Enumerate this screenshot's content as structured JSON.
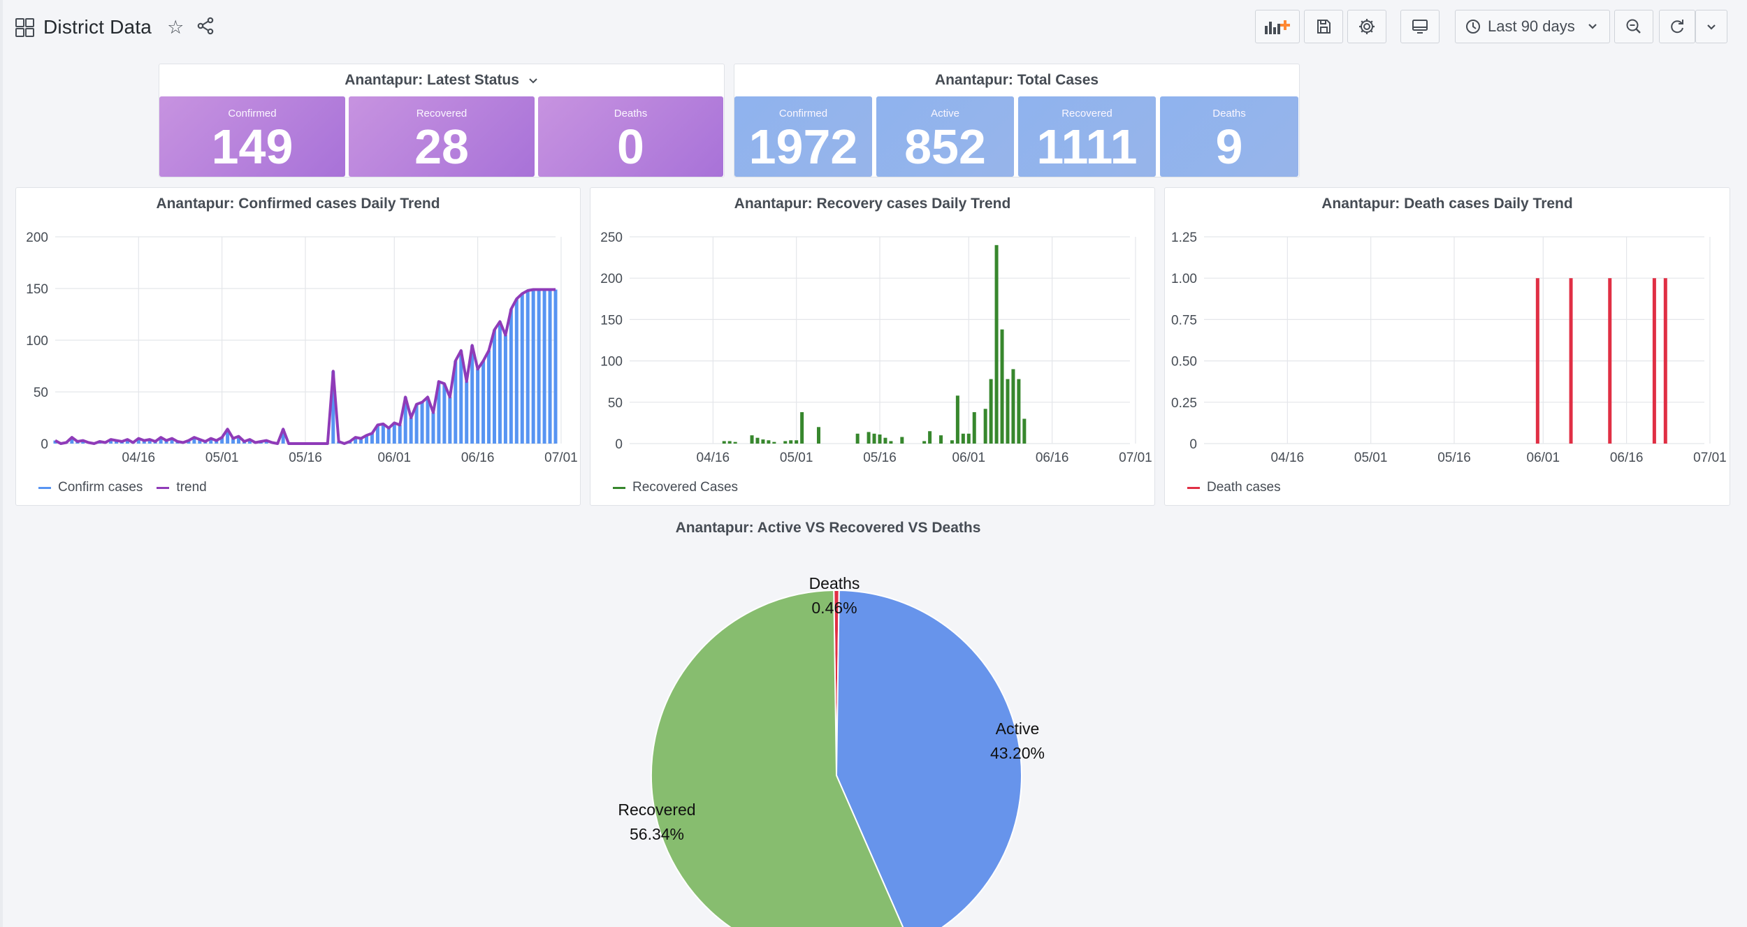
{
  "header": {
    "title": "District Data",
    "time_range": "Last 90 days"
  },
  "latest_status": {
    "title": "Anantapur: Latest Status",
    "stats": [
      {
        "label": "Confirmed",
        "value": "149"
      },
      {
        "label": "Recovered",
        "value": "28"
      },
      {
        "label": "Deaths",
        "value": "0"
      }
    ]
  },
  "total_cases": {
    "title": "Anantapur: Total Cases",
    "stats": [
      {
        "label": "Confirmed",
        "value": "1972"
      },
      {
        "label": "Active",
        "value": "852"
      },
      {
        "label": "Recovered",
        "value": "1111"
      },
      {
        "label": "Deaths",
        "value": "9"
      }
    ]
  },
  "colors": {
    "confirm_bar": "#5794f2",
    "trend": "#8f3bb8",
    "recovered": "#37872d",
    "deaths": "#e02f44",
    "pie_active": "#6794eb",
    "pie_recovered": "#87bd6f",
    "pie_deaths": "#e02f44"
  },
  "chart_data": [
    {
      "type": "bar",
      "title": "Anantapur: Confirmed cases Daily Trend",
      "x_tick_labels": [
        "04/16",
        "05/01",
        "05/16",
        "06/01",
        "06/16",
        "07/01"
      ],
      "y_tick_labels": [
        "0",
        "50",
        "100",
        "150",
        "200"
      ],
      "ylim": [
        0,
        200
      ],
      "xlim_days": [
        0,
        90
      ],
      "legend": [
        "Confirm cases",
        "trend"
      ],
      "series": [
        {
          "name": "Confirm cases",
          "render": "bars",
          "values": [
            3,
            0,
            1,
            6,
            2,
            3,
            1,
            0,
            2,
            1,
            4,
            3,
            2,
            4,
            1,
            5,
            3,
            4,
            2,
            6,
            3,
            5,
            2,
            1,
            3,
            6,
            4,
            2,
            5,
            3,
            6,
            14,
            5,
            7,
            2,
            4,
            1,
            2,
            3,
            1,
            0,
            14,
            0,
            0,
            0,
            0,
            0,
            0,
            0,
            0,
            70,
            2,
            0,
            2,
            6,
            5,
            8,
            10,
            18,
            19,
            15,
            20,
            18,
            45,
            25,
            38,
            40,
            45,
            30,
            60,
            58,
            45,
            80,
            90,
            60,
            95,
            72,
            80,
            90,
            110,
            118,
            105,
            130,
            140,
            145,
            148,
            149,
            149,
            149,
            149,
            149
          ]
        },
        {
          "name": "trend",
          "render": "line",
          "values": [
            3,
            0,
            1,
            6,
            2,
            3,
            1,
            0,
            2,
            1,
            4,
            3,
            2,
            4,
            1,
            5,
            3,
            4,
            2,
            6,
            3,
            5,
            2,
            1,
            3,
            6,
            4,
            2,
            5,
            3,
            6,
            14,
            5,
            7,
            2,
            4,
            1,
            2,
            3,
            1,
            0,
            14,
            0,
            0,
            0,
            0,
            0,
            0,
            0,
            0,
            70,
            2,
            0,
            2,
            6,
            5,
            8,
            10,
            18,
            19,
            15,
            20,
            18,
            45,
            25,
            38,
            40,
            45,
            30,
            60,
            58,
            45,
            80,
            90,
            60,
            95,
            72,
            80,
            90,
            110,
            118,
            105,
            130,
            140,
            145,
            148,
            149,
            149,
            149,
            149,
            149
          ]
        }
      ]
    },
    {
      "type": "bar",
      "title": "Anantapur: Recovery cases Daily Trend",
      "x_tick_labels": [
        "04/16",
        "05/01",
        "05/16",
        "06/01",
        "06/16",
        "07/01"
      ],
      "y_tick_labels": [
        "0",
        "50",
        "100",
        "150",
        "200",
        "250"
      ],
      "ylim": [
        0,
        250
      ],
      "legend": [
        "Recovered Cases"
      ],
      "series": [
        {
          "name": "Recovered Cases",
          "render": "bars",
          "points": [
            [
              17,
              3
            ],
            [
              18,
              3
            ],
            [
              19,
              2
            ],
            [
              22,
              10
            ],
            [
              23,
              7
            ],
            [
              24,
              5
            ],
            [
              25,
              4
            ],
            [
              26,
              2
            ],
            [
              28,
              3
            ],
            [
              29,
              4
            ],
            [
              30,
              4
            ],
            [
              31,
              38
            ],
            [
              34,
              20
            ],
            [
              41,
              12
            ],
            [
              43,
              14
            ],
            [
              44,
              12
            ],
            [
              45,
              11
            ],
            [
              46,
              7
            ],
            [
              47,
              3
            ],
            [
              49,
              8
            ],
            [
              53,
              3
            ],
            [
              54,
              15
            ],
            [
              56,
              10
            ],
            [
              58,
              4
            ],
            [
              59,
              58
            ],
            [
              60,
              12
            ],
            [
              61,
              12
            ],
            [
              62,
              38
            ],
            [
              64,
              42
            ],
            [
              65,
              78
            ],
            [
              66,
              240
            ],
            [
              67,
              138
            ],
            [
              68,
              78
            ],
            [
              69,
              90
            ],
            [
              70,
              78
            ],
            [
              71,
              30
            ]
          ]
        }
      ]
    },
    {
      "type": "bar",
      "title": "Anantapur: Death cases Daily Trend",
      "x_tick_labels": [
        "04/16",
        "05/01",
        "05/16",
        "06/01",
        "06/16",
        "07/01"
      ],
      "y_tick_labels": [
        "0",
        "0.25",
        "0.50",
        "0.75",
        "1.00",
        "1.25"
      ],
      "ylim": [
        0,
        1.25
      ],
      "legend": [
        "Death cases"
      ],
      "series": [
        {
          "name": "Death cases",
          "render": "bars",
          "points": [
            [
              60,
              1
            ],
            [
              66,
              1
            ],
            [
              73,
              1
            ],
            [
              81,
              1
            ],
            [
              83,
              1
            ]
          ]
        }
      ]
    },
    {
      "type": "pie",
      "title": "Anantapur: Active VS Recovered VS Deaths",
      "slices": [
        {
          "label": "Deaths",
          "value": 0.46,
          "display": "0.46%"
        },
        {
          "label": "Active",
          "value": 43.2,
          "display": "43.20%"
        },
        {
          "label": "Recovered",
          "value": 56.34,
          "display": "56.34%"
        }
      ]
    }
  ]
}
